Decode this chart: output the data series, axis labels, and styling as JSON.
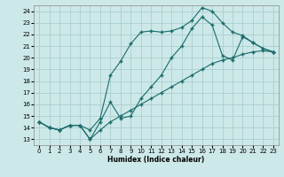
{
  "title": "",
  "xlabel": "Humidex (Indice chaleur)",
  "bg_color": "#cde8e8",
  "grid_color": "#aacece",
  "line_color": "#1a6b6b",
  "xlim": [
    -0.5,
    23.5
  ],
  "ylim": [
    12.5,
    24.5
  ],
  "xticks": [
    0,
    1,
    2,
    3,
    4,
    5,
    6,
    7,
    8,
    9,
    10,
    11,
    12,
    13,
    14,
    15,
    16,
    17,
    18,
    19,
    20,
    21,
    22,
    23
  ],
  "yticks": [
    13,
    14,
    15,
    16,
    17,
    18,
    19,
    20,
    21,
    22,
    23,
    24
  ],
  "line1_x": [
    0,
    1,
    2,
    3,
    4,
    5,
    6,
    7,
    8,
    9,
    10,
    11,
    12,
    13,
    14,
    15,
    16,
    17,
    18,
    19,
    20,
    21,
    22,
    23
  ],
  "line1_y": [
    14.5,
    14.0,
    13.8,
    14.2,
    14.2,
    13.8,
    14.8,
    18.5,
    19.7,
    21.2,
    22.2,
    22.3,
    22.2,
    22.3,
    22.6,
    23.2,
    24.3,
    24.0,
    23.0,
    22.2,
    21.9,
    21.3,
    20.8,
    20.5
  ],
  "line2_x": [
    0,
    1,
    2,
    3,
    4,
    5,
    6,
    7,
    8,
    9,
    10,
    11,
    12,
    13,
    14,
    15,
    16,
    17,
    18,
    19,
    20,
    21,
    22,
    23
  ],
  "line2_y": [
    14.5,
    14.0,
    13.8,
    14.2,
    14.2,
    13.0,
    14.5,
    16.2,
    14.8,
    15.0,
    16.5,
    17.5,
    18.5,
    20.0,
    21.0,
    22.5,
    23.5,
    22.8,
    20.2,
    19.8,
    21.8,
    21.3,
    20.8,
    20.5
  ],
  "line3_x": [
    0,
    1,
    2,
    3,
    4,
    5,
    6,
    7,
    8,
    9,
    10,
    11,
    12,
    13,
    14,
    15,
    16,
    17,
    18,
    19,
    20,
    21,
    22,
    23
  ],
  "line3_y": [
    14.5,
    14.0,
    13.8,
    14.2,
    14.2,
    13.0,
    13.8,
    14.5,
    15.0,
    15.5,
    16.0,
    16.5,
    17.0,
    17.5,
    18.0,
    18.5,
    19.0,
    19.5,
    19.8,
    20.0,
    20.3,
    20.5,
    20.6,
    20.5
  ]
}
